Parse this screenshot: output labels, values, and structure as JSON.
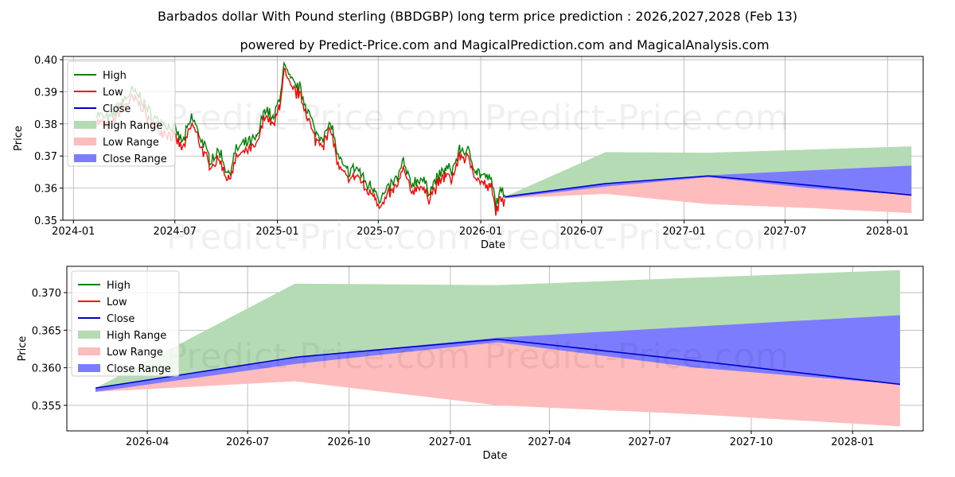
{
  "title_line1": "Barbados dollar With Pound sterling (BBDGBP) long term price prediction : 2026,2027,2028 (Feb 13)",
  "title_line2": "powered by Predict-Price.com and MagicalPrediction.com and MagicalAnalysis.com",
  "watermark": "Predict-Price.com",
  "colors": {
    "high": "#008000",
    "low": "#ff0000",
    "close": "#0000cc",
    "high_range": "#b5dbb5",
    "low_range": "#ffbcbc",
    "close_range": "#7c7cff"
  },
  "chart_data": [
    {
      "type": "line",
      "name": "top",
      "xlabel": "Date",
      "ylabel": "Price",
      "x_range": [
        "2023-12-13",
        "2028-03-05"
      ],
      "ylim": [
        0.35,
        0.401
      ],
      "yticks": [
        "0.35",
        "0.36",
        "0.37",
        "0.38",
        "0.39",
        "0.40"
      ],
      "xticks": [
        {
          "date": "2024-01-01",
          "label": "2024-01"
        },
        {
          "date": "2024-07-01",
          "label": "2024-07"
        },
        {
          "date": "2025-01-01",
          "label": "2025-01"
        },
        {
          "date": "2025-07-01",
          "label": "2025-07"
        },
        {
          "date": "2026-01-01",
          "label": "2026-01"
        },
        {
          "date": "2026-07-01",
          "label": "2026-07"
        },
        {
          "date": "2027-01-01",
          "label": "2027-01"
        },
        {
          "date": "2027-07-01",
          "label": "2027-07"
        },
        {
          "date": "2028-01-01",
          "label": "2028-01"
        }
      ],
      "legend": [
        "High",
        "Low",
        "Close",
        "High Range",
        "Low Range",
        "Close Range"
      ],
      "legend_position": "upper-left",
      "history_anchors": [
        [
          "2024-02-10",
          0.382
        ],
        [
          "2024-03-05",
          0.38
        ],
        [
          "2024-03-25",
          0.385
        ],
        [
          "2024-04-15",
          0.389
        ],
        [
          "2024-05-01",
          0.387
        ],
        [
          "2024-05-20",
          0.381
        ],
        [
          "2024-06-10",
          0.379
        ],
        [
          "2024-07-01",
          0.377
        ],
        [
          "2024-07-15",
          0.373
        ],
        [
          "2024-08-01",
          0.381
        ],
        [
          "2024-08-15",
          0.375
        ],
        [
          "2024-09-01",
          0.368
        ],
        [
          "2024-09-20",
          0.37
        ],
        [
          "2024-10-05",
          0.363
        ],
        [
          "2024-10-20",
          0.371
        ],
        [
          "2024-11-10",
          0.373
        ],
        [
          "2024-11-25",
          0.374
        ],
        [
          "2024-12-10",
          0.384
        ],
        [
          "2024-12-25",
          0.38
        ],
        [
          "2025-01-05",
          0.387
        ],
        [
          "2025-01-13",
          0.397
        ],
        [
          "2025-01-25",
          0.392
        ],
        [
          "2025-02-10",
          0.39
        ],
        [
          "2025-02-25",
          0.383
        ],
        [
          "2025-03-10",
          0.376
        ],
        [
          "2025-03-25",
          0.375
        ],
        [
          "2025-04-08",
          0.379
        ],
        [
          "2025-04-20",
          0.368
        ],
        [
          "2025-05-05",
          0.364
        ],
        [
          "2025-05-25",
          0.365
        ],
        [
          "2025-06-10",
          0.36
        ],
        [
          "2025-06-25",
          0.359
        ],
        [
          "2025-07-05",
          0.355
        ],
        [
          "2025-07-20",
          0.359
        ],
        [
          "2025-08-05",
          0.362
        ],
        [
          "2025-08-15",
          0.367
        ],
        [
          "2025-08-28",
          0.36
        ],
        [
          "2025-09-15",
          0.362
        ],
        [
          "2025-09-30",
          0.358
        ],
        [
          "2025-10-15",
          0.362
        ],
        [
          "2025-10-30",
          0.365
        ],
        [
          "2025-11-10",
          0.364
        ],
        [
          "2025-11-25",
          0.371
        ],
        [
          "2025-12-10",
          0.37
        ],
        [
          "2025-12-25",
          0.364
        ],
        [
          "2026-01-10",
          0.362
        ],
        [
          "2026-01-20",
          0.361
        ],
        [
          "2026-01-28",
          0.354
        ],
        [
          "2026-02-05",
          0.357
        ],
        [
          "2026-02-13",
          0.3572
        ]
      ],
      "forecast": {
        "dates": [
          "2026-02-13",
          "2026-08-13",
          "2027-02-13",
          "2027-08-13",
          "2028-02-13"
        ],
        "close": [
          0.3573,
          0.3614,
          0.3638,
          0.3609,
          0.3578
        ],
        "high_range_upper": [
          0.3573,
          0.3712,
          0.371,
          0.372,
          0.373
        ],
        "low_range_lower": [
          0.3568,
          0.3582,
          0.355,
          0.3538,
          0.3522
        ],
        "close_range_upper": [
          0.3573,
          0.3614,
          0.364,
          0.3655,
          0.367
        ],
        "close_range_lower": [
          0.3568,
          0.3605,
          0.3634,
          0.36,
          0.3578
        ]
      }
    },
    {
      "type": "line",
      "name": "bottom",
      "xlabel": "Date",
      "ylabel": "Price",
      "x_range": [
        "2026-01-18",
        "2028-03-05"
      ],
      "ylim": [
        0.3516,
        0.3735
      ],
      "yticks": [
        "0.355",
        "0.360",
        "0.365",
        "0.370"
      ],
      "xticks": [
        {
          "date": "2026-04-01",
          "label": "2026-04"
        },
        {
          "date": "2026-07-01",
          "label": "2026-07"
        },
        {
          "date": "2026-10-01",
          "label": "2026-10"
        },
        {
          "date": "2027-01-01",
          "label": "2027-01"
        },
        {
          "date": "2027-04-01",
          "label": "2027-04"
        },
        {
          "date": "2027-07-01",
          "label": "2027-07"
        },
        {
          "date": "2027-10-01",
          "label": "2027-10"
        },
        {
          "date": "2028-01-01",
          "label": "2028-01"
        }
      ],
      "legend": [
        "High",
        "Low",
        "Close",
        "High Range",
        "Low Range",
        "Close Range"
      ],
      "legend_position": "upper-left"
    }
  ]
}
